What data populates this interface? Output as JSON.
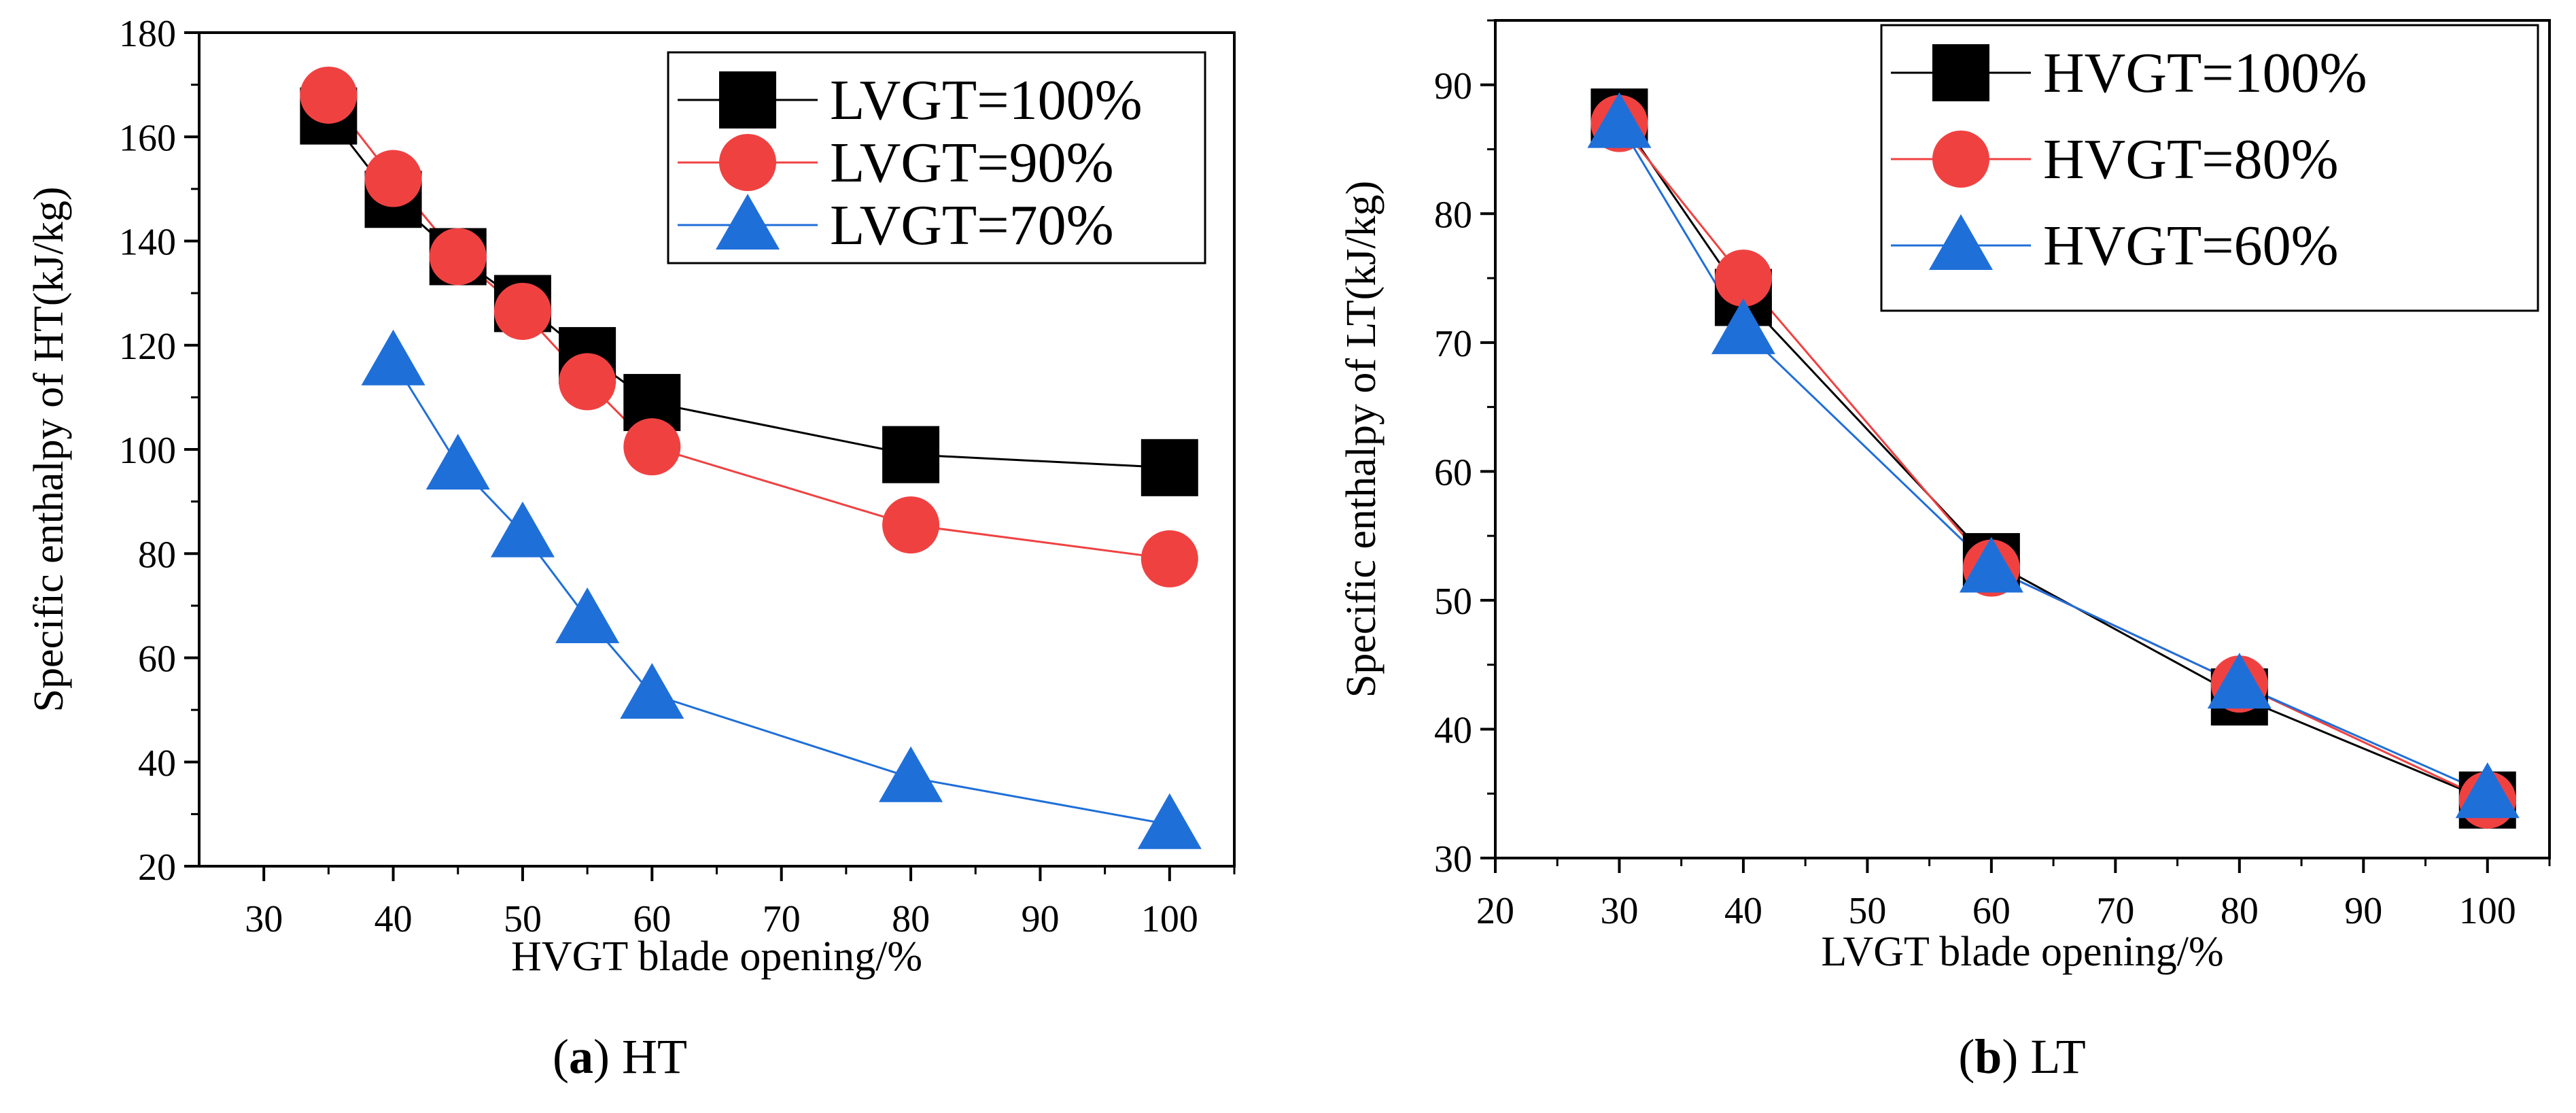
{
  "chart_data": [
    {
      "type": "line",
      "caption_letter": "a",
      "caption_text": "HT",
      "xlabel": "HVGT blade opening/%",
      "ylabel": "Specific enthalpy of HT(kJ/kg)",
      "xlim": [
        25,
        105
      ],
      "ylim": [
        20,
        180
      ],
      "xticks": [
        30,
        40,
        50,
        60,
        70,
        80,
        90,
        100
      ],
      "yticks": [
        20,
        40,
        60,
        80,
        100,
        120,
        140,
        160,
        180
      ],
      "grid": false,
      "legend_position": "top-right",
      "series": [
        {
          "name": "LVGT=100%",
          "color": "#000000",
          "marker": "square",
          "x": [
            35,
            40,
            45,
            50,
            55,
            60,
            80,
            100
          ],
          "y": [
            164,
            148,
            137,
            128,
            118,
            109,
            99,
            96.5
          ]
        },
        {
          "name": "LVGT=90%",
          "color": "#f04141",
          "marker": "circle",
          "x": [
            35,
            40,
            45,
            50,
            55,
            60,
            80,
            100
          ],
          "y": [
            168,
            152,
            137,
            126.5,
            113,
            100.5,
            85.5,
            79
          ]
        },
        {
          "name": "LVGT=70%",
          "color": "#1f6fd9",
          "marker": "triangle",
          "x": [
            40,
            45,
            50,
            55,
            60,
            80,
            100
          ],
          "y": [
            117,
            97,
            84,
            67.5,
            53,
            37,
            28
          ]
        }
      ]
    },
    {
      "type": "line",
      "caption_letter": "b",
      "caption_text": "LT",
      "xlabel": "LVGT blade opening/%",
      "ylabel": "Specific enthalpy of LT(kJ/kg)",
      "xlim": [
        20,
        105
      ],
      "ylim": [
        30,
        95
      ],
      "xticks": [
        20,
        30,
        40,
        50,
        60,
        70,
        80,
        90,
        100
      ],
      "yticks": [
        30,
        40,
        50,
        60,
        70,
        80,
        90
      ],
      "grid": false,
      "legend_position": "top-right",
      "series": [
        {
          "name": "HVGT=100%",
          "color": "#000000",
          "marker": "square",
          "x": [
            30,
            40,
            60,
            80,
            100
          ],
          "y": [
            87.5,
            73.5,
            53,
            42.5,
            34.5
          ]
        },
        {
          "name": "HVGT=80%",
          "color": "#f04141",
          "marker": "circle",
          "x": [
            30,
            40,
            60,
            80,
            100
          ],
          "y": [
            87,
            75,
            52.5,
            43.5,
            34.5
          ]
        },
        {
          "name": "HVGT=60%",
          "color": "#1f6fd9",
          "marker": "triangle",
          "x": [
            30,
            40,
            60,
            80,
            100
          ],
          "y": [
            87,
            71,
            52.5,
            43.5,
            35
          ]
        }
      ]
    }
  ]
}
